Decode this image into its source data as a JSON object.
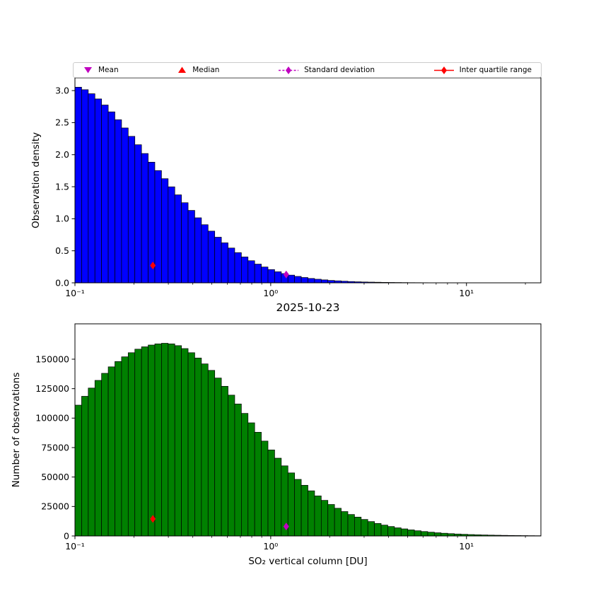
{
  "figure": {
    "background": "#ffffff",
    "date_label": "2025-10-23"
  },
  "legend": {
    "items": [
      {
        "label": "Mean",
        "marker": "triangle-down-icon",
        "color": "#c000c0"
      },
      {
        "label": "Median",
        "marker": "triangle-up-icon",
        "color": "#ff0000"
      },
      {
        "label": "Standard deviation",
        "marker": "diamond-dashed-line-icon",
        "color": "#c000c0"
      },
      {
        "label": "Inter quartile range",
        "marker": "diamond-solid-line-icon",
        "color": "#ff0000"
      }
    ]
  },
  "chart_data": [
    {
      "type": "bar",
      "name": "observation-density-histogram",
      "xlabel": "2025-10-23",
      "ylabel": "Observation density",
      "xscale": "log",
      "xlim": [
        0.1,
        24.0
      ],
      "ylim": [
        0,
        3.2
      ],
      "yticks": [
        0.0,
        0.5,
        1.0,
        1.5,
        2.0,
        2.5,
        3.0
      ],
      "ytick_labels": [
        "0.0",
        "0.5",
        "1.0",
        "1.5",
        "2.0",
        "2.5",
        "3.0"
      ],
      "xticks": [
        0.1,
        1,
        10
      ],
      "xtick_labels": [
        "10⁻¹",
        "10⁰",
        "10¹"
      ],
      "grid": false,
      "bar_color": "#0000ff",
      "bar_edge_color": "#000000",
      "bins_log10_start": -1,
      "bins_log10_step": 0.034003,
      "values": [
        3.053,
        3.014,
        2.951,
        2.87,
        2.775,
        2.668,
        2.545,
        2.417,
        2.286,
        2.155,
        2.018,
        1.883,
        1.752,
        1.625,
        1.498,
        1.373,
        1.25,
        1.13,
        1.015,
        0.907,
        0.807,
        0.712,
        0.624,
        0.543,
        0.471,
        0.404,
        0.345,
        0.292,
        0.247,
        0.207,
        0.173,
        0.144,
        0.12,
        0.1,
        0.083,
        0.068,
        0.056,
        0.046,
        0.037,
        0.031,
        0.025,
        0.02,
        0.016,
        0.013,
        0.011,
        0.009,
        0.007,
        0.006,
        0.005,
        0.004,
        0.003,
        0.0025,
        0.002,
        0.0015,
        0.0011,
        0.0009,
        0.0007,
        0.0005,
        0.0004,
        0.0003,
        0.00025,
        0.0002,
        0.00015,
        0.00012,
        9e-05,
        7e-05,
        6e-05,
        4e-05,
        3e-05,
        3e-05
      ],
      "markers": [
        {
          "name": "inter-quartile-range",
          "shape": "diamond",
          "color": "#ff0000",
          "x": 0.25,
          "y": 0.27
        },
        {
          "name": "standard-deviation",
          "shape": "diamond",
          "color": "#c000c0",
          "x": 1.2,
          "y": 0.13
        }
      ]
    },
    {
      "type": "bar",
      "name": "number-of-observations-histogram",
      "xlabel": "SO₂ vertical column [DU]",
      "ylabel": "Number of observations",
      "xscale": "log",
      "xlim": [
        0.1,
        24.0
      ],
      "ylim": [
        0,
        180000
      ],
      "yticks": [
        0,
        25000,
        50000,
        75000,
        100000,
        125000,
        150000
      ],
      "ytick_labels": [
        "0",
        "25000",
        "50000",
        "75000",
        "100000",
        "125000",
        "150000"
      ],
      "xticks": [
        0.1,
        1,
        10
      ],
      "xtick_labels": [
        "10⁻¹",
        "10⁰",
        "10¹"
      ],
      "grid": false,
      "bar_color": "#008000",
      "bar_edge_color": "#000000",
      "bins_log10_start": -1,
      "bins_log10_step": 0.034003,
      "values": [
        111000,
        118500,
        125500,
        132000,
        138000,
        143500,
        148000,
        152000,
        155500,
        158500,
        160500,
        162000,
        163000,
        163500,
        163000,
        161500,
        159000,
        155500,
        151000,
        146000,
        140500,
        134000,
        127000,
        119500,
        112000,
        104000,
        96000,
        88000,
        80500,
        73000,
        66000,
        59500,
        53500,
        48000,
        43000,
        38300,
        34000,
        30200,
        26700,
        23500,
        20700,
        18200,
        16000,
        14000,
        12200,
        10600,
        9200,
        8000,
        6900,
        6000,
        5150,
        4400,
        3750,
        3200,
        2700,
        2300,
        1950,
        1650,
        1400,
        1180,
        1000,
        840,
        710,
        600,
        500,
        420,
        355,
        300,
        250,
        210
      ],
      "markers": [
        {
          "name": "inter-quartile-range",
          "shape": "diamond",
          "color": "#ff0000",
          "x": 0.25,
          "y": 14500
        },
        {
          "name": "standard-deviation",
          "shape": "diamond",
          "color": "#c000c0",
          "x": 1.2,
          "y": 8000
        }
      ]
    }
  ]
}
